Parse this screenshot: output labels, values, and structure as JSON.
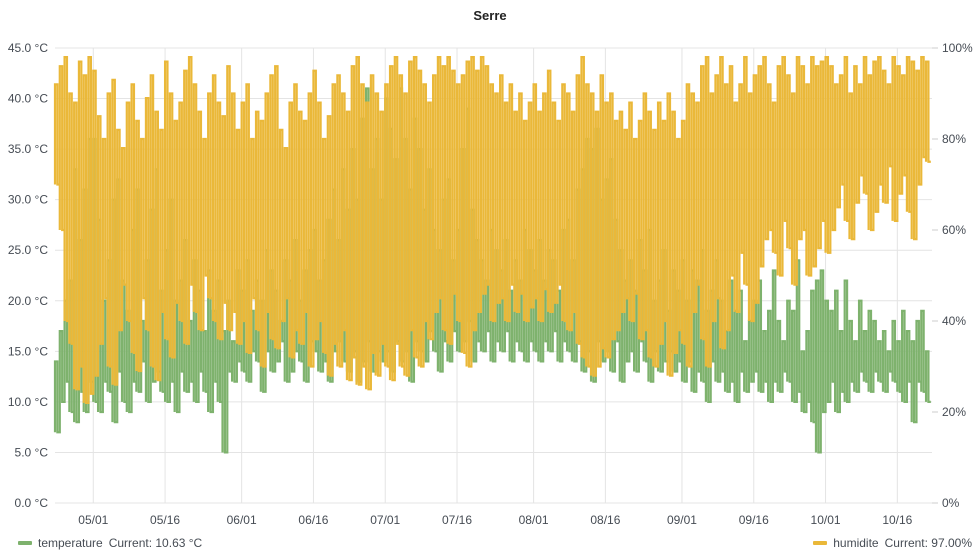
{
  "chart_data": {
    "type": "line",
    "title": "Serre",
    "x_start": "04/23",
    "x_interval": "1d",
    "x_ticks": [
      "05/01",
      "05/16",
      "06/01",
      "06/16",
      "07/01",
      "07/16",
      "08/01",
      "08/16",
      "09/01",
      "09/16",
      "10/01",
      "10/16"
    ],
    "y_left": {
      "min": 0,
      "max": 45,
      "unit": "°C",
      "ticks": [
        "0.0 °C",
        "5.0 °C",
        "10.0 °C",
        "15.0 °C",
        "20.0 °C",
        "25.0 °C",
        "30.0 °C",
        "35.0 °C",
        "40.0 °C",
        "45.0 °C"
      ]
    },
    "y_right": {
      "min": 0,
      "max": 100,
      "unit": "%",
      "ticks": [
        "0%",
        "20%",
        "40%",
        "60%",
        "80%",
        "100%"
      ]
    },
    "grid": true,
    "legend_placement": "bottom",
    "series": [
      {
        "name": "temperature",
        "axis": "left",
        "color": "#7eb26d",
        "legend_text": "Current: 10.63 °C",
        "daily_min": [
          7,
          10,
          12,
          9,
          8,
          11,
          9,
          12,
          10,
          9,
          12,
          11,
          8,
          13,
          10,
          9,
          12,
          11,
          14,
          10,
          12,
          13,
          11,
          10,
          12,
          9,
          13,
          11,
          12,
          10,
          13,
          11,
          9,
          12,
          10,
          5,
          13,
          12,
          14,
          13,
          12,
          15,
          14,
          11,
          15,
          13,
          14,
          16,
          12,
          13,
          15,
          14,
          12,
          16,
          15,
          13,
          14,
          12,
          15,
          16,
          14,
          13,
          15,
          12,
          14,
          16,
          13,
          15,
          14,
          15,
          13,
          16,
          14,
          15,
          12,
          16,
          15,
          14,
          17,
          15,
          13,
          16,
          14,
          17,
          15,
          16,
          18,
          14,
          16,
          15,
          17,
          14,
          16,
          15,
          17,
          14,
          16,
          15,
          14,
          16,
          15,
          14,
          16,
          15,
          17,
          14,
          16,
          15,
          14,
          16,
          13,
          15,
          12,
          16,
          14,
          15,
          13,
          16,
          12,
          14,
          15,
          13,
          16,
          14,
          12,
          15,
          13,
          14,
          15,
          13,
          14,
          12,
          14,
          11,
          13,
          12,
          10,
          14,
          12,
          13,
          11,
          12,
          10,
          13,
          11,
          12,
          13,
          11,
          12,
          10,
          12,
          11,
          13,
          12,
          10,
          11,
          9,
          10,
          8,
          5,
          9,
          10,
          12,
          9,
          11,
          10,
          12,
          11,
          13,
          12,
          11,
          13,
          12,
          11,
          13,
          12,
          11,
          10,
          12,
          8,
          12,
          11,
          10
        ],
        "daily_max": [
          14,
          17,
          20,
          22,
          33,
          26,
          31,
          36,
          36,
          28,
          20,
          24,
          30,
          32,
          22,
          19,
          27,
          31,
          18,
          24,
          29,
          33,
          21,
          25,
          30,
          20,
          22,
          26,
          18,
          24,
          21,
          17,
          23,
          19,
          22,
          17,
          20,
          16,
          23,
          21,
          24,
          19,
          22,
          20,
          25,
          23,
          21,
          18,
          24,
          22,
          26,
          20,
          23,
          25,
          27,
          22,
          24,
          28,
          31,
          26,
          33,
          29,
          35,
          30,
          38,
          41,
          33,
          36,
          30,
          40,
          37,
          34,
          41,
          36,
          31,
          38,
          35,
          29,
          33,
          27,
          25,
          30,
          32,
          24,
          27,
          35,
          39,
          29,
          26,
          24,
          22,
          27,
          25,
          23,
          26,
          21,
          24,
          22,
          27,
          25,
          23,
          26,
          22,
          25,
          24,
          21,
          27,
          28,
          24,
          31,
          33,
          36,
          35,
          37,
          30,
          32,
          34,
          28,
          25,
          22,
          24,
          21,
          26,
          23,
          27,
          20,
          22,
          25,
          19,
          23,
          21,
          24,
          20,
          23,
          22,
          25,
          19,
          21,
          24,
          20,
          17,
          22,
          19,
          21,
          16,
          18,
          20,
          22,
          17,
          19,
          23,
          18,
          16,
          20,
          19,
          24,
          15,
          17,
          21,
          22,
          23,
          20,
          19,
          21,
          17,
          22,
          18,
          16,
          20,
          17,
          19,
          18,
          16,
          17,
          15,
          18,
          16,
          19,
          17,
          16,
          18,
          19,
          15
        ]
      },
      {
        "name": "humidite",
        "axis": "right",
        "color": "#eab839",
        "legend_text": "Current: 97.00%",
        "daily_min": [
          70,
          60,
          40,
          35,
          25,
          30,
          22,
          24,
          28,
          35,
          45,
          30,
          26,
          38,
          48,
          40,
          33,
          29,
          45,
          38,
          30,
          27,
          42,
          36,
          32,
          44,
          40,
          35,
          48,
          42,
          38,
          50,
          45,
          40,
          36,
          44,
          38,
          42,
          35,
          40,
          33,
          45,
          38,
          30,
          42,
          36,
          34,
          40,
          45,
          32,
          38,
          35,
          42,
          30,
          36,
          40,
          33,
          28,
          35,
          30,
          38,
          27,
          32,
          26,
          30,
          25,
          33,
          28,
          35,
          30,
          27,
          35,
          30,
          28,
          38,
          32,
          30,
          40,
          36,
          42,
          45,
          38,
          35,
          46,
          40,
          33,
          30,
          38,
          42,
          46,
          48,
          40,
          44,
          45,
          40,
          48,
          42,
          46,
          40,
          43,
          45,
          40,
          47,
          42,
          44,
          48,
          40,
          38,
          42,
          35,
          32,
          30,
          28,
          30,
          34,
          32,
          36,
          38,
          42,
          45,
          40,
          46,
          36,
          38,
          32,
          30,
          35,
          40,
          28,
          33,
          38,
          35,
          30,
          42,
          48,
          36,
          30,
          40,
          45,
          34,
          38,
          50,
          42,
          55,
          48,
          40,
          44,
          52,
          58,
          60,
          55,
          50,
          62,
          56,
          48,
          58,
          60,
          50,
          52,
          56,
          62,
          55,
          60,
          65,
          70,
          62,
          58,
          66,
          72,
          68,
          60,
          64,
          70,
          66,
          74,
          62,
          68,
          72,
          64,
          58,
          70,
          76,
          75
        ],
        "daily_max": [
          92,
          96,
          98,
          90,
          88,
          97,
          94,
          98,
          95,
          85,
          80,
          90,
          93,
          82,
          78,
          88,
          92,
          84,
          80,
          89,
          94,
          86,
          82,
          97,
          90,
          84,
          88,
          95,
          98,
          92,
          86,
          80,
          90,
          94,
          88,
          85,
          96,
          90,
          82,
          88,
          92,
          80,
          86,
          84,
          90,
          94,
          96,
          82,
          78,
          88,
          92,
          86,
          84,
          90,
          95,
          88,
          80,
          85,
          92,
          94,
          90,
          86,
          96,
          98,
          92,
          88,
          94,
          90,
          86,
          92,
          96,
          98,
          94,
          90,
          97,
          98,
          95,
          92,
          88,
          94,
          98,
          96,
          98,
          95,
          92,
          94,
          97,
          98,
          95,
          98,
          96,
          92,
          90,
          94,
          88,
          92,
          86,
          90,
          84,
          88,
          92,
          86,
          90,
          95,
          88,
          84,
          92,
          90,
          86,
          94,
          98,
          92,
          90,
          86,
          94,
          88,
          90,
          84,
          86,
          82,
          88,
          80,
          84,
          90,
          86,
          82,
          88,
          84,
          90,
          86,
          80,
          84,
          92,
          90,
          88,
          96,
          98,
          90,
          94,
          98,
          92,
          96,
          88,
          92,
          98,
          90,
          94,
          96,
          98,
          92,
          88,
          96,
          98,
          94,
          90,
          98,
          96,
          92,
          98,
          96,
          97,
          98,
          96,
          92,
          94,
          98,
          90,
          96,
          92,
          98,
          94,
          97,
          98,
          95,
          92,
          98,
          96,
          94,
          98,
          97,
          95,
          98,
          97
        ]
      }
    ]
  }
}
